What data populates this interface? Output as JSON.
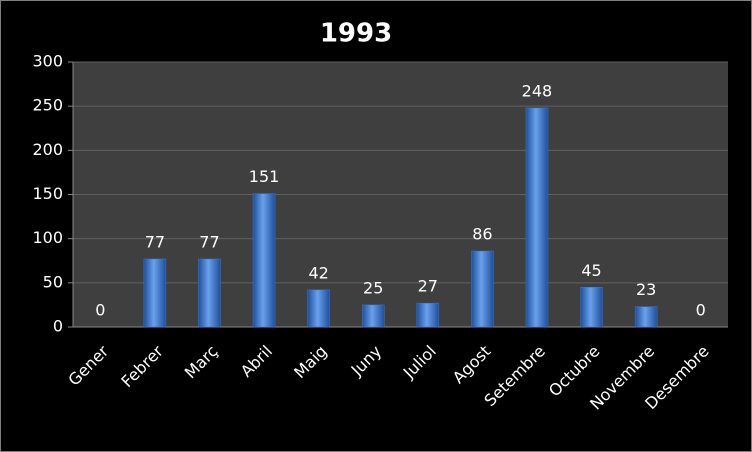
{
  "chart_data": {
    "type": "bar",
    "title": "1993",
    "categories": [
      "Gener",
      "Febrer",
      "Març",
      "Abril",
      "Maig",
      "Juny",
      "Juliol",
      "Agost",
      "Setembre",
      "Octubre",
      "Novembre",
      "Desembre"
    ],
    "values": [
      0,
      77,
      77,
      151,
      42,
      25,
      27,
      86,
      248,
      45,
      23,
      0
    ],
    "color": "#3a78d4",
    "ylim": [
      0,
      300
    ],
    "yticks": [
      0,
      50,
      100,
      150,
      200,
      250,
      300
    ],
    "grid": true
  }
}
